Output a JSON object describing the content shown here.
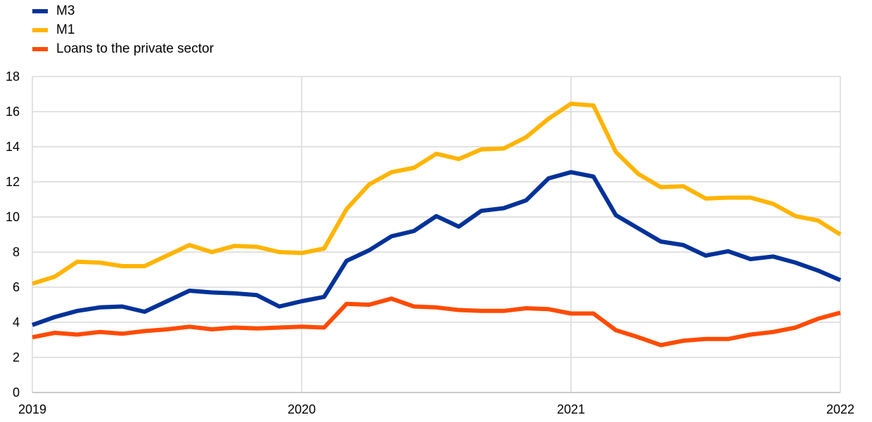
{
  "chart_data": {
    "type": "line",
    "title": "",
    "xlabel": "",
    "ylabel": "",
    "ylim": [
      0,
      18
    ],
    "yticks": [
      "0",
      "2",
      "4",
      "6",
      "8",
      "10",
      "12",
      "14",
      "16",
      "18"
    ],
    "xticks": [
      "2019",
      "2020",
      "2021",
      "2022"
    ],
    "x_start": "2019-01",
    "x_end": "2022-01",
    "frequency": "monthly",
    "grid": true,
    "legend_position": "top-left",
    "series": [
      {
        "name": "M3",
        "color": "#003299",
        "values": [
          3.85,
          4.3,
          4.65,
          4.85,
          4.9,
          4.6,
          5.2,
          5.8,
          5.7,
          5.65,
          5.55,
          4.9,
          5.2,
          5.45,
          7.5,
          8.1,
          8.9,
          9.2,
          10.05,
          9.45,
          10.35,
          10.5,
          10.95,
          12.2,
          12.55,
          12.3,
          10.1,
          9.35,
          8.6,
          8.4,
          7.8,
          8.05,
          7.6,
          7.75,
          7.4,
          6.95,
          6.4
        ]
      },
      {
        "name": "M1",
        "color": "#FFB400",
        "values": [
          6.2,
          6.6,
          7.45,
          7.4,
          7.2,
          7.2,
          7.8,
          8.4,
          8.0,
          8.35,
          8.3,
          8.0,
          7.95,
          8.2,
          10.45,
          11.85,
          12.55,
          12.8,
          13.6,
          13.3,
          13.85,
          13.9,
          14.55,
          15.6,
          16.45,
          16.35,
          13.7,
          12.45,
          11.7,
          11.75,
          11.05,
          11.1,
          11.1,
          10.75,
          10.05,
          9.8,
          9.0
        ]
      },
      {
        "name": "Loans to the private sector",
        "color": "#FF4B00",
        "values": [
          3.15,
          3.4,
          3.3,
          3.45,
          3.35,
          3.5,
          3.6,
          3.75,
          3.6,
          3.7,
          3.65,
          3.7,
          3.75,
          3.7,
          5.05,
          5.0,
          5.35,
          4.9,
          4.85,
          4.7,
          4.65,
          4.65,
          4.8,
          4.75,
          4.5,
          4.5,
          3.55,
          3.15,
          2.7,
          2.95,
          3.05,
          3.05,
          3.3,
          3.45,
          3.7,
          4.2,
          4.55
        ]
      }
    ]
  }
}
